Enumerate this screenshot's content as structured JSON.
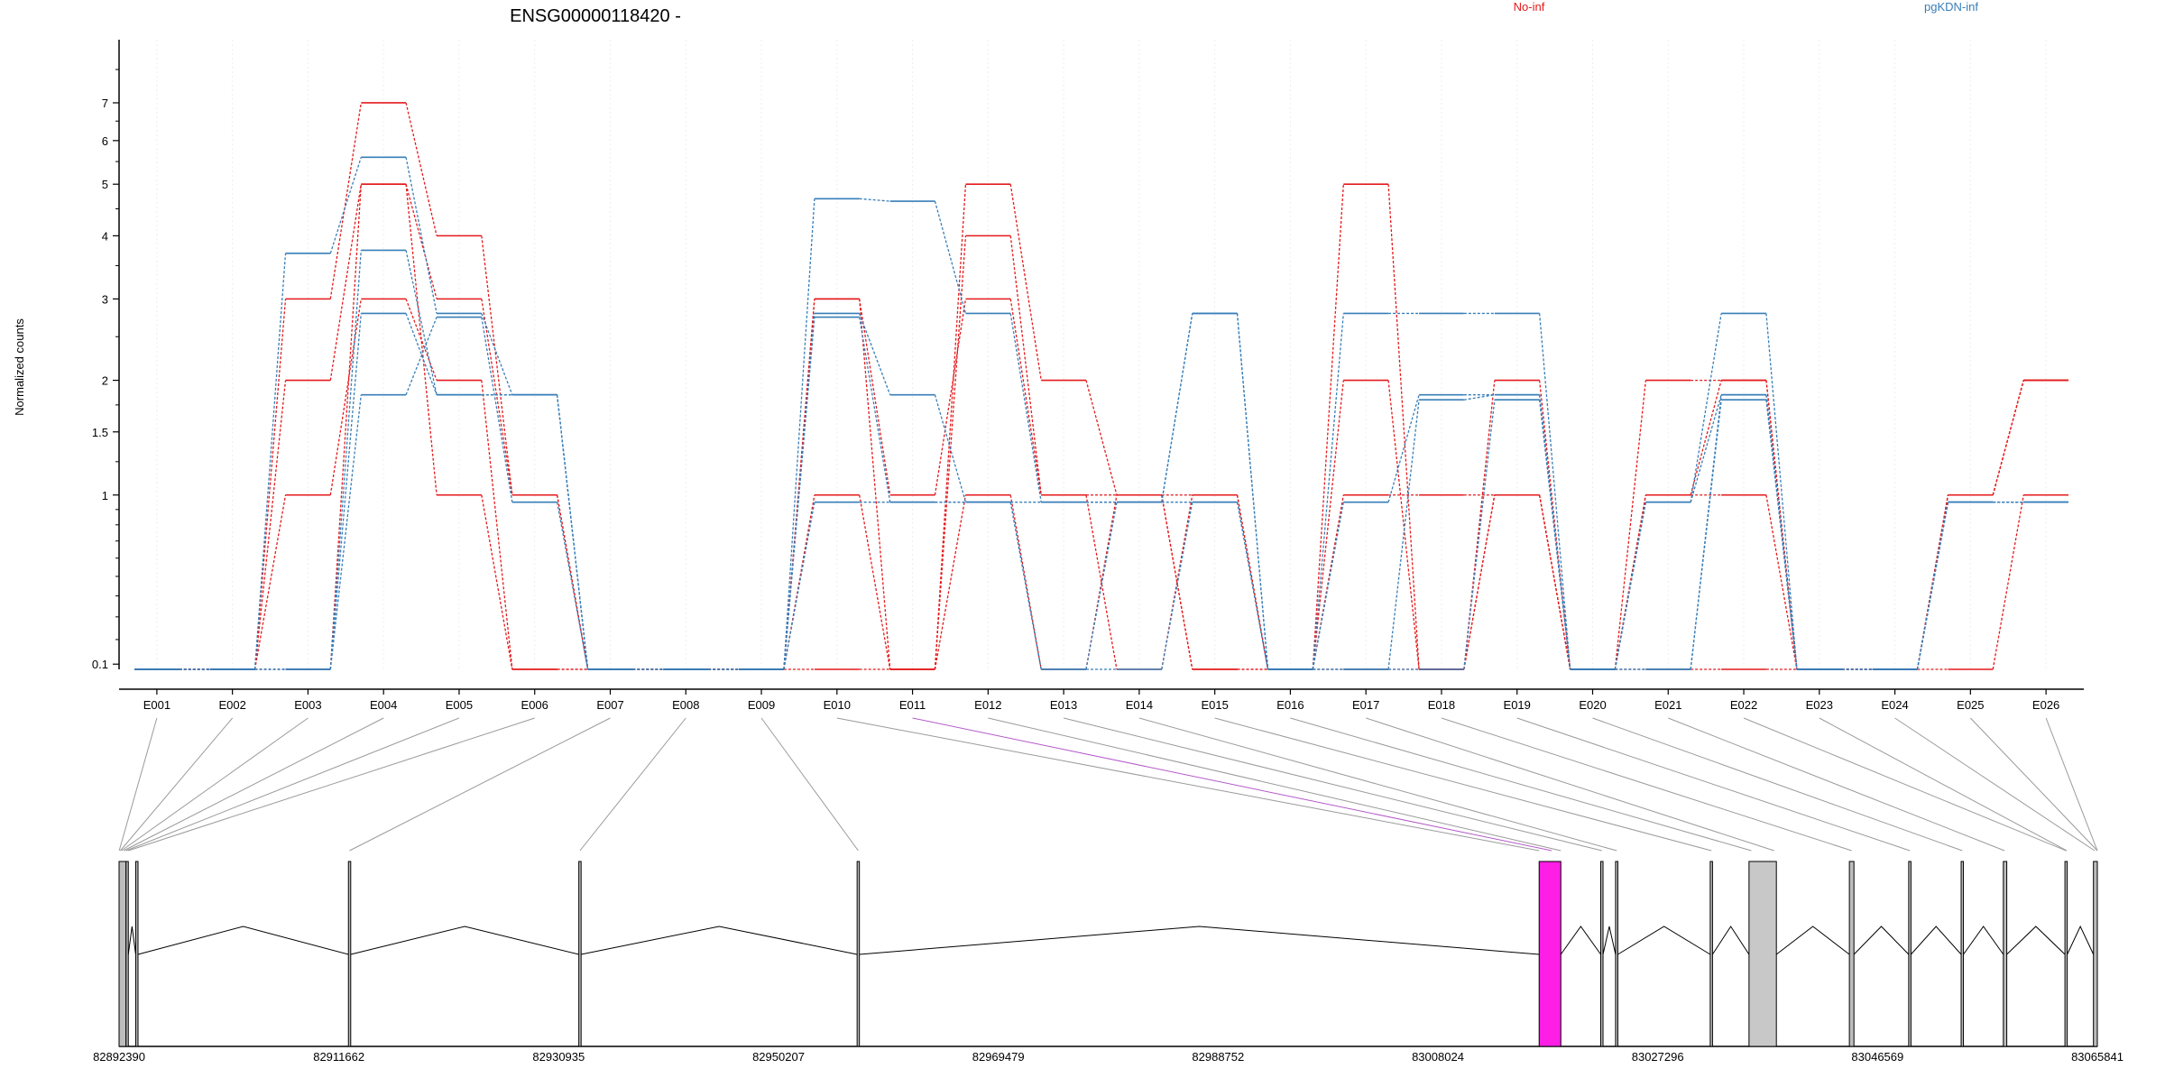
{
  "chart_data": {
    "type": "line",
    "title": "ENSG00000118420 -",
    "ylabel": "Normalized counts",
    "ylim": [
      0.08,
      9
    ],
    "y_scale": "log1p",
    "y_ticks": [
      {
        "v": 0.1,
        "label": "0.1"
      },
      {
        "v": 1,
        "label": "1"
      },
      {
        "v": 1.5,
        "label": "1.5"
      },
      {
        "v": 2,
        "label": "2"
      },
      {
        "v": 3,
        "label": "3"
      },
      {
        "v": 4,
        "label": "4"
      },
      {
        "v": 5,
        "label": "5"
      },
      {
        "v": 6,
        "label": "6"
      },
      {
        "v": 7,
        "label": "7"
      }
    ],
    "categories": [
      "E001",
      "E002",
      "E003",
      "E004",
      "E005",
      "E006",
      "E007",
      "E008",
      "E009",
      "E010",
      "E011",
      "E012",
      "E013",
      "E014",
      "E015",
      "E016",
      "E017",
      "E018",
      "E019",
      "E020",
      "E021",
      "E022",
      "E023",
      "E024",
      "E025",
      "E026"
    ],
    "legend": [
      {
        "label": "No-inf",
        "color": "#e41a1c"
      },
      {
        "label": "pgKDN-inf",
        "color": "#377eb8"
      }
    ],
    "series": [
      {
        "group": "No-inf",
        "color": "#e41a1c",
        "values": [
          0,
          0,
          3,
          7,
          4,
          1,
          0,
          0,
          0,
          3,
          0,
          5,
          2,
          1,
          1,
          0,
          5,
          0,
          1,
          0,
          2,
          2,
          0,
          0,
          1,
          2
        ]
      },
      {
        "group": "No-inf",
        "color": "#e41a1c",
        "values": [
          0,
          0,
          2,
          5,
          3,
          1,
          0,
          0,
          0,
          1,
          0,
          4,
          1,
          1,
          0,
          0,
          2,
          0,
          2,
          0,
          1,
          2,
          0,
          0,
          1,
          2
        ]
      },
      {
        "group": "No-inf",
        "color": "#e41a1c",
        "values": [
          0,
          0,
          1,
          3,
          2,
          0,
          0,
          0,
          0,
          3,
          1,
          3,
          1,
          0,
          1,
          0,
          1,
          1,
          1,
          0,
          1,
          1,
          0,
          0,
          0,
          1
        ]
      },
      {
        "group": "No-inf",
        "color": "#e41a1c",
        "values": [
          0,
          0,
          0,
          5,
          1,
          0,
          0,
          0,
          0,
          0,
          0,
          1,
          0,
          1,
          0,
          0,
          0,
          0,
          1,
          0,
          0,
          0,
          0,
          0,
          1,
          2
        ]
      },
      {
        "group": "pgKDN-inf",
        "color": "#377eb8",
        "values": [
          0,
          0,
          3.7,
          5.6,
          2.8,
          1.85,
          0,
          0,
          0,
          4.7,
          4.65,
          2.8,
          0.95,
          0.95,
          2.8,
          0,
          2.8,
          2.8,
          2.8,
          0,
          0.95,
          2.8,
          0,
          0,
          0.95,
          0.95
        ]
      },
      {
        "group": "pgKDN-inf",
        "color": "#377eb8",
        "values": [
          0,
          0,
          0,
          3.75,
          1.85,
          1.85,
          0,
          0,
          0,
          2.8,
          1.85,
          0.95,
          0.95,
          0.95,
          2.8,
          0,
          0.95,
          1.85,
          1.85,
          0,
          0.95,
          1.85,
          0,
          0,
          0.95,
          0.95
        ]
      },
      {
        "group": "pgKDN-inf",
        "color": "#377eb8",
        "values": [
          0,
          0,
          0,
          1.85,
          2.75,
          0.95,
          0,
          0,
          0,
          0.95,
          0.95,
          0.95,
          0,
          0,
          0.95,
          0,
          0,
          1.8,
          1.85,
          0,
          0,
          1.8,
          0,
          0,
          0.95,
          0.95
        ]
      },
      {
        "group": "pgKDN-inf",
        "color": "#377eb8",
        "values": [
          0,
          0,
          0,
          2.8,
          1.85,
          1.85,
          0,
          0,
          0,
          2.75,
          0.95,
          0.95,
          0,
          0.95,
          0.95,
          0,
          0,
          0,
          1.8,
          0,
          0,
          1.85,
          0,
          0,
          0.95,
          0.95
        ]
      }
    ],
    "gene_model": {
      "genomic_ticks": [
        "82892390",
        "82911662",
        "82930935",
        "82950207",
        "82969479",
        "82988752",
        "83008024",
        "83027296",
        "83046569",
        "83065841"
      ],
      "range": [
        82892390,
        83065841
      ],
      "exons": [
        {
          "start": 82892390,
          "end": 82893000
        },
        {
          "start": 82893000,
          "end": 82893200
        },
        {
          "start": 82893850,
          "end": 82894050
        },
        {
          "start": 82912500,
          "end": 82912700
        },
        {
          "start": 82932700,
          "end": 82932900
        },
        {
          "start": 82957100,
          "end": 82957300
        },
        {
          "start": 83016900,
          "end": 83018800,
          "highlight": true
        },
        {
          "start": 83022300,
          "end": 83022500
        },
        {
          "start": 83023600,
          "end": 83023800
        },
        {
          "start": 83031900,
          "end": 83032100
        },
        {
          "start": 83035300,
          "end": 83037700,
          "gray": true
        },
        {
          "start": 83044100,
          "end": 83044500
        },
        {
          "start": 83049300,
          "end": 83049500
        },
        {
          "start": 83053900,
          "end": 83054100
        },
        {
          "start": 83057600,
          "end": 83057900
        },
        {
          "start": 83063000,
          "end": 83063200
        },
        {
          "start": 83065500,
          "end": 83065841
        }
      ],
      "bin_anchors": [
        82892400,
        82892500,
        82892600,
        82892800,
        82893000,
        82893200,
        82912600,
        82932800,
        82957200,
        83016900,
        83018000,
        83018800,
        83022400,
        83023700,
        83032000,
        83035500,
        83037500,
        83044300,
        83049400,
        83054000,
        83057700,
        83063100,
        83063150,
        83065600,
        83065841,
        83065841
      ],
      "highlight_category": "E011"
    }
  }
}
